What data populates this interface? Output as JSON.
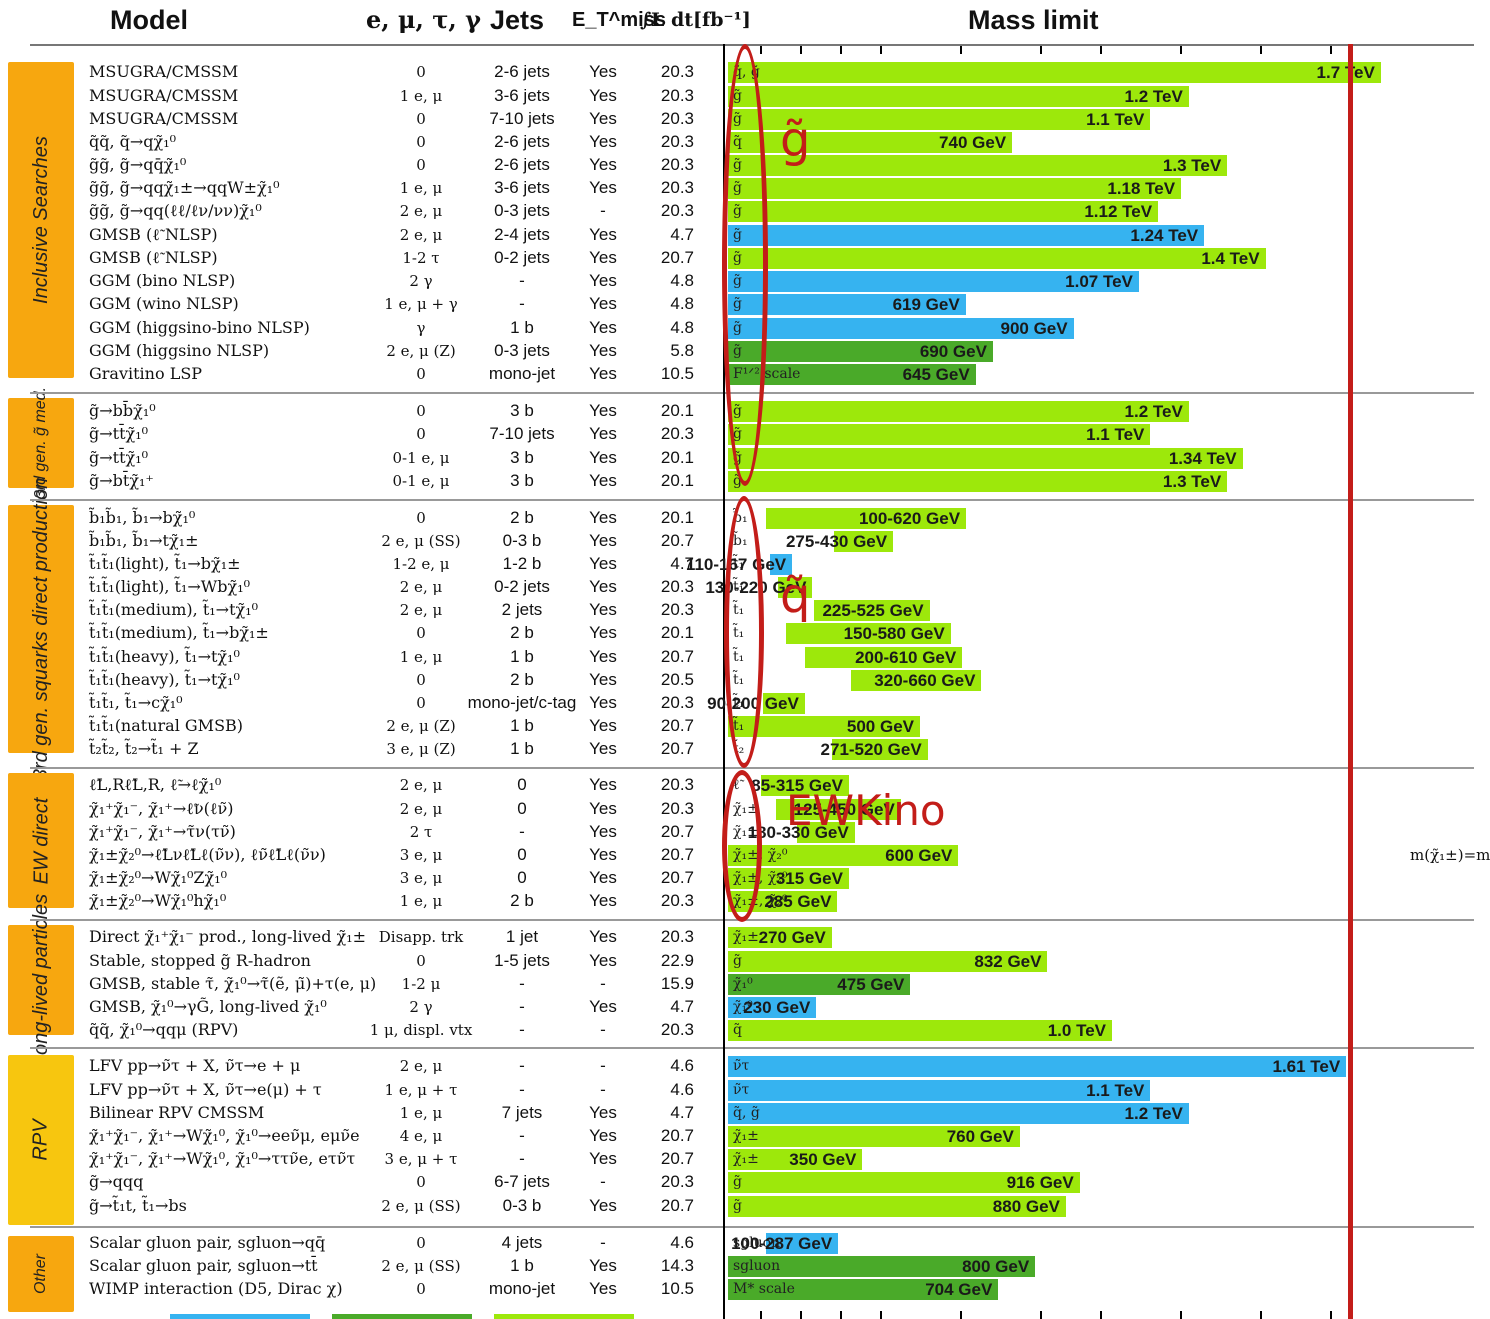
{
  "header": {
    "model": "Model",
    "leptons": "e, μ, τ, γ",
    "jets": "Jets",
    "met": "E_T^miss",
    "lumi": "∫L dt[fb⁻¹]",
    "mass_limit": "Mass limit"
  },
  "colors": {
    "lime": "#9de80b",
    "green": "#4aaa29",
    "blue": "#36b3f0",
    "red": "#c31d19",
    "tab": "#f7a70f",
    "tab_rpv": "#f7c60f"
  },
  "annotations": {
    "gluino": "g̃",
    "squark": "q̃",
    "ewkino": "EWKino"
  },
  "cut_text": "m(χ̃₁±)=m",
  "sections": [
    {
      "label": "Inclusive Searches"
    },
    {
      "label": "3rd gen. g̃ med."
    },
    {
      "label": "3rd gen. squarks direct production"
    },
    {
      "label": "EW direct"
    },
    {
      "label": "Long-lived particles"
    },
    {
      "label": "RPV"
    },
    {
      "label": "Other"
    }
  ],
  "chart_data": {
    "type": "bar",
    "orientation": "horizontal",
    "title": "Mass limit",
    "xlabel": "",
    "xunit": "TeV",
    "reference_line_tev": 1.7,
    "rows": [
      {
        "model": "MSUGRA/CMSSM",
        "lep": "0",
        "jets": "2-6 jets",
        "met": "Yes",
        "lumi": "20.3",
        "sp": "q̃, g̃",
        "lo": 0,
        "hi": 1.7,
        "label": "1.7 TeV",
        "color": "lime"
      },
      {
        "model": "MSUGRA/CMSSM",
        "lep": "1 e, μ",
        "jets": "3-6 jets",
        "met": "Yes",
        "lumi": "20.3",
        "sp": "g̃",
        "lo": 0,
        "hi": 1.2,
        "label": "1.2 TeV",
        "color": "lime"
      },
      {
        "model": "MSUGRA/CMSSM",
        "lep": "0",
        "jets": "7-10 jets",
        "met": "Yes",
        "lumi": "20.3",
        "sp": "g̃",
        "lo": 0,
        "hi": 1.1,
        "label": "1.1 TeV",
        "color": "lime"
      },
      {
        "model": "q̃q̃, q̃→qχ̃₁⁰",
        "lep": "0",
        "jets": "2-6 jets",
        "met": "Yes",
        "lumi": "20.3",
        "sp": "q̃",
        "lo": 0,
        "hi": 0.74,
        "label": "740 GeV",
        "color": "lime"
      },
      {
        "model": "g̃g̃, g̃→qq̄χ̃₁⁰",
        "lep": "0",
        "jets": "2-6 jets",
        "met": "Yes",
        "lumi": "20.3",
        "sp": "g̃",
        "lo": 0,
        "hi": 1.3,
        "label": "1.3 TeV",
        "color": "lime"
      },
      {
        "model": "g̃g̃, g̃→qqχ̃₁±→qqW±χ̃₁⁰",
        "lep": "1 e, μ",
        "jets": "3-6 jets",
        "met": "Yes",
        "lumi": "20.3",
        "sp": "g̃",
        "lo": 0,
        "hi": 1.18,
        "label": "1.18 TeV",
        "color": "lime"
      },
      {
        "model": "g̃g̃, g̃→qq(ℓℓ/ℓν/νν)χ̃₁⁰",
        "lep": "2 e, μ",
        "jets": "0-3 jets",
        "met": "-",
        "lumi": "20.3",
        "sp": "g̃",
        "lo": 0,
        "hi": 1.12,
        "label": "1.12 TeV",
        "color": "lime"
      },
      {
        "model": "GMSB (ℓ̃ NLSP)",
        "lep": "2 e, μ",
        "jets": "2-4 jets",
        "met": "Yes",
        "lumi": "4.7",
        "sp": "g̃",
        "lo": 0,
        "hi": 1.24,
        "label": "1.24 TeV",
        "color": "blue"
      },
      {
        "model": "GMSB (ℓ̃ NLSP)",
        "lep": "1-2 τ",
        "jets": "0-2 jets",
        "met": "Yes",
        "lumi": "20.7",
        "sp": "g̃",
        "lo": 0,
        "hi": 1.4,
        "label": "1.4 TeV",
        "color": "lime"
      },
      {
        "model": "GGM (bino NLSP)",
        "lep": "2 γ",
        "jets": "-",
        "met": "Yes",
        "lumi": "4.8",
        "sp": "g̃",
        "lo": 0,
        "hi": 1.07,
        "label": "1.07 TeV",
        "color": "blue"
      },
      {
        "model": "GGM (wino NLSP)",
        "lep": "1 e, μ + γ",
        "jets": "-",
        "met": "Yes",
        "lumi": "4.8",
        "sp": "g̃",
        "lo": 0,
        "hi": 0.619,
        "label": "619 GeV",
        "color": "blue"
      },
      {
        "model": "GGM (higgsino-bino NLSP)",
        "lep": "γ",
        "jets": "1 b",
        "met": "Yes",
        "lumi": "4.8",
        "sp": "g̃",
        "lo": 0,
        "hi": 0.9,
        "label": "900 GeV",
        "color": "blue"
      },
      {
        "model": "GGM (higgsino NLSP)",
        "lep": "2 e, μ (Z)",
        "jets": "0-3 jets",
        "met": "Yes",
        "lumi": "5.8",
        "sp": "g̃",
        "lo": 0,
        "hi": 0.69,
        "label": "690 GeV",
        "color": "green"
      },
      {
        "model": "Gravitino LSP",
        "lep": "0",
        "jets": "mono-jet",
        "met": "Yes",
        "lumi": "10.5",
        "sp": "F¹ᐟ² scale",
        "lo": 0,
        "hi": 0.645,
        "label": "645 GeV",
        "color": "green"
      },
      {
        "model": "g̃→bb̄χ̃₁⁰",
        "lep": "0",
        "jets": "3 b",
        "met": "Yes",
        "lumi": "20.1",
        "sp": "g̃",
        "lo": 0,
        "hi": 1.2,
        "label": "1.2 TeV",
        "color": "lime"
      },
      {
        "model": "g̃→tt̄χ̃₁⁰",
        "lep": "0",
        "jets": "7-10 jets",
        "met": "Yes",
        "lumi": "20.3",
        "sp": "g̃",
        "lo": 0,
        "hi": 1.1,
        "label": "1.1 TeV",
        "color": "lime"
      },
      {
        "model": "g̃→tt̄χ̃₁⁰",
        "lep": "0-1 e, μ",
        "jets": "3 b",
        "met": "Yes",
        "lumi": "20.1",
        "sp": "g̃",
        "lo": 0,
        "hi": 1.34,
        "label": "1.34 TeV",
        "color": "lime"
      },
      {
        "model": "g̃→bt̄χ̃₁⁺",
        "lep": "0-1 e, μ",
        "jets": "3 b",
        "met": "Yes",
        "lumi": "20.1",
        "sp": "g̃",
        "lo": 0,
        "hi": 1.3,
        "label": "1.3 TeV",
        "color": "lime"
      },
      {
        "model": "b̃₁b̃₁, b̃₁→bχ̃₁⁰",
        "lep": "0",
        "jets": "2 b",
        "met": "Yes",
        "lumi": "20.1",
        "sp": "b̃₁",
        "lo": 0.1,
        "hi": 0.62,
        "label": "100-620 GeV",
        "color": "lime"
      },
      {
        "model": "b̃₁b̃₁, b̃₁→tχ̃₁±",
        "lep": "2 e, μ (SS)",
        "jets": "0-3 b",
        "met": "Yes",
        "lumi": "20.7",
        "sp": "b̃₁",
        "lo": 0.275,
        "hi": 0.43,
        "label": "275-430 GeV",
        "color": "lime"
      },
      {
        "model": "t̃₁t̃₁(light), t̃₁→bχ̃₁±",
        "lep": "1-2 e, μ",
        "jets": "1-2 b",
        "met": "Yes",
        "lumi": "4.7",
        "sp": "t̃₁",
        "lo": 0.11,
        "hi": 0.167,
        "label": "110-167 GeV",
        "color": "blue"
      },
      {
        "model": "t̃₁t̃₁(light), t̃₁→Wbχ̃₁⁰",
        "lep": "2 e, μ",
        "jets": "0-2 jets",
        "met": "Yes",
        "lumi": "20.3",
        "sp": "t̃₁",
        "lo": 0.13,
        "hi": 0.22,
        "label": "130-220 GeV",
        "color": "lime"
      },
      {
        "model": "t̃₁t̃₁(medium), t̃₁→tχ̃₁⁰",
        "lep": "2 e, μ",
        "jets": "2 jets",
        "met": "Yes",
        "lumi": "20.3",
        "sp": "t̃₁",
        "lo": 0.225,
        "hi": 0.525,
        "label": "225-525 GeV",
        "color": "lime"
      },
      {
        "model": "t̃₁t̃₁(medium), t̃₁→bχ̃₁±",
        "lep": "0",
        "jets": "2 b",
        "met": "Yes",
        "lumi": "20.1",
        "sp": "t̃₁",
        "lo": 0.15,
        "hi": 0.58,
        "label": "150-580 GeV",
        "color": "lime"
      },
      {
        "model": "t̃₁t̃₁(heavy), t̃₁→tχ̃₁⁰",
        "lep": "1 e, μ",
        "jets": "1 b",
        "met": "Yes",
        "lumi": "20.7",
        "sp": "t̃₁",
        "lo": 0.2,
        "hi": 0.61,
        "label": "200-610 GeV",
        "color": "lime"
      },
      {
        "model": "t̃₁t̃₁(heavy), t̃₁→tχ̃₁⁰",
        "lep": "0",
        "jets": "2 b",
        "met": "Yes",
        "lumi": "20.5",
        "sp": "t̃₁",
        "lo": 0.32,
        "hi": 0.66,
        "label": "320-660 GeV",
        "color": "lime"
      },
      {
        "model": "t̃₁t̃₁, t̃₁→cχ̃₁⁰",
        "lep": "0",
        "jets": "mono-jet/c-tag",
        "met": "Yes",
        "lumi": "20.3",
        "sp": "t̃₁",
        "lo": 0.09,
        "hi": 0.2,
        "label": "90-200 GeV",
        "color": "lime"
      },
      {
        "model": "t̃₁t̃₁(natural GMSB)",
        "lep": "2 e, μ (Z)",
        "jets": "1 b",
        "met": "Yes",
        "lumi": "20.7",
        "sp": "t̃₁",
        "lo": 0,
        "hi": 0.5,
        "label": "500 GeV",
        "color": "lime"
      },
      {
        "model": "t̃₂t̃₂, t̃₂→t̃₁ + Z",
        "lep": "3 e, μ (Z)",
        "jets": "1 b",
        "met": "Yes",
        "lumi": "20.7",
        "sp": "t̃₂",
        "lo": 0.271,
        "hi": 0.52,
        "label": "271-520 GeV",
        "color": "lime"
      },
      {
        "model": "ℓ̃L,Rℓ̃L,R, ℓ̃→ℓχ̃₁⁰",
        "lep": "2 e, μ",
        "jets": "0",
        "met": "Yes",
        "lumi": "20.3",
        "sp": "ℓ̃",
        "lo": 0.085,
        "hi": 0.315,
        "label": "85-315 GeV",
        "color": "lime"
      },
      {
        "model": "χ̃₁⁺χ̃₁⁻, χ̃₁⁺→ℓ̃ν(ℓν̃)",
        "lep": "2 e, μ",
        "jets": "0",
        "met": "Yes",
        "lumi": "20.3",
        "sp": "χ̃₁±",
        "lo": 0.125,
        "hi": 0.45,
        "label": "125-450 GeV",
        "color": "lime"
      },
      {
        "model": "χ̃₁⁺χ̃₁⁻, χ̃₁⁺→τ̃ν(τν̃)",
        "lep": "2 τ",
        "jets": "-",
        "met": "Yes",
        "lumi": "20.7",
        "sp": "χ̃₁±",
        "lo": 0.18,
        "hi": 0.33,
        "label": "180-330 GeV",
        "color": "lime"
      },
      {
        "model": "χ̃₁±χ̃₂⁰→ℓ̃Lνℓ̃Lℓ(ν̃ν), ℓν̃ℓ̃Lℓ(ν̃ν)",
        "lep": "3 e, μ",
        "jets": "0",
        "met": "Yes",
        "lumi": "20.7",
        "sp": "χ̃₁±, χ̃₂⁰",
        "lo": 0,
        "hi": 0.6,
        "label": "600 GeV",
        "color": "lime"
      },
      {
        "model": "χ̃₁±χ̃₂⁰→Wχ̃₁⁰Zχ̃₁⁰",
        "lep": "3 e, μ",
        "jets": "0",
        "met": "Yes",
        "lumi": "20.7",
        "sp": "χ̃₁±, χ̃₂⁰",
        "lo": 0,
        "hi": 0.315,
        "label": "315 GeV",
        "color": "lime"
      },
      {
        "model": "χ̃₁±χ̃₂⁰→Wχ̃₁⁰hχ̃₁⁰",
        "lep": "1 e, μ",
        "jets": "2 b",
        "met": "Yes",
        "lumi": "20.3",
        "sp": "χ̃₁±, χ̃₂⁰",
        "lo": 0,
        "hi": 0.285,
        "label": "285 GeV",
        "color": "lime"
      },
      {
        "model": "Direct χ̃₁⁺χ̃₁⁻ prod., long-lived χ̃₁±",
        "lep": "Disapp. trk",
        "jets": "1 jet",
        "met": "Yes",
        "lumi": "20.3",
        "sp": "χ̃₁±",
        "lo": 0,
        "hi": 0.27,
        "label": "270 GeV",
        "color": "lime"
      },
      {
        "model": "Stable, stopped g̃ R-hadron",
        "lep": "0",
        "jets": "1-5 jets",
        "met": "Yes",
        "lumi": "22.9",
        "sp": "g̃",
        "lo": 0,
        "hi": 0.832,
        "label": "832 GeV",
        "color": "lime"
      },
      {
        "model": "GMSB, stable τ̃, χ̃₁⁰→τ̃(ẽ, μ̃)+τ(e, μ)",
        "lep": "1-2 μ",
        "jets": "-",
        "met": "-",
        "lumi": "15.9",
        "sp": "χ̃₁⁰",
        "lo": 0,
        "hi": 0.475,
        "label": "475 GeV",
        "color": "green"
      },
      {
        "model": "GMSB, χ̃₁⁰→γG̃, long-lived χ̃₁⁰",
        "lep": "2 γ",
        "jets": "-",
        "met": "Yes",
        "lumi": "4.7",
        "sp": "χ̃₁⁰",
        "lo": 0,
        "hi": 0.23,
        "label": "230 GeV",
        "color": "blue"
      },
      {
        "model": "q̃q̃, χ̃₁⁰→qqμ (RPV)",
        "lep": "1 μ, displ. vtx",
        "jets": "-",
        "met": "-",
        "lumi": "20.3",
        "sp": "q̃",
        "lo": 0,
        "hi": 1.0,
        "label": "1.0 TeV",
        "color": "lime"
      },
      {
        "model": "LFV pp→ν̃τ + X, ν̃τ→e + μ",
        "lep": "2 e, μ",
        "jets": "-",
        "met": "-",
        "lumi": "4.6",
        "sp": "ν̃τ",
        "lo": 0,
        "hi": 1.61,
        "label": "1.61 TeV",
        "color": "blue"
      },
      {
        "model": "LFV pp→ν̃τ + X, ν̃τ→e(μ) + τ",
        "lep": "1 e, μ + τ",
        "jets": "-",
        "met": "-",
        "lumi": "4.6",
        "sp": "ν̃τ",
        "lo": 0,
        "hi": 1.1,
        "label": "1.1 TeV",
        "color": "blue"
      },
      {
        "model": "Bilinear RPV CMSSM",
        "lep": "1 e, μ",
        "jets": "7 jets",
        "met": "Yes",
        "lumi": "4.7",
        "sp": "q̃, g̃",
        "lo": 0,
        "hi": 1.2,
        "label": "1.2 TeV",
        "color": "blue"
      },
      {
        "model": "χ̃₁⁺χ̃₁⁻, χ̃₁⁺→Wχ̃₁⁰, χ̃₁⁰→eeν̃μ, eμν̃e",
        "lep": "4 e, μ",
        "jets": "-",
        "met": "Yes",
        "lumi": "20.7",
        "sp": "χ̃₁±",
        "lo": 0,
        "hi": 0.76,
        "label": "760 GeV",
        "color": "lime"
      },
      {
        "model": "χ̃₁⁺χ̃₁⁻, χ̃₁⁺→Wχ̃₁⁰, χ̃₁⁰→ττν̃e, eτν̃τ",
        "lep": "3 e, μ + τ",
        "jets": "-",
        "met": "Yes",
        "lumi": "20.7",
        "sp": "χ̃₁±",
        "lo": 0,
        "hi": 0.35,
        "label": "350 GeV",
        "color": "lime"
      },
      {
        "model": "g̃→qqq",
        "lep": "0",
        "jets": "6-7 jets",
        "met": "-",
        "lumi": "20.3",
        "sp": "g̃",
        "lo": 0,
        "hi": 0.916,
        "label": "916 GeV",
        "color": "lime"
      },
      {
        "model": "g̃→t̃₁t, t̃₁→bs",
        "lep": "2 e, μ (SS)",
        "jets": "0-3 b",
        "met": "Yes",
        "lumi": "20.7",
        "sp": "g̃",
        "lo": 0,
        "hi": 0.88,
        "label": "880 GeV",
        "color": "lime"
      },
      {
        "model": "Scalar gluon pair, sgluon→qq̄",
        "lep": "0",
        "jets": "4 jets",
        "met": "-",
        "lumi": "4.6",
        "sp": "sgluon",
        "lo": 0.1,
        "hi": 0.287,
        "label": "100-287 GeV",
        "color": "blue"
      },
      {
        "model": "Scalar gluon pair, sgluon→tt̄",
        "lep": "2 e, μ (SS)",
        "jets": "1 b",
        "met": "Yes",
        "lumi": "14.3",
        "sp": "sgluon",
        "lo": 0,
        "hi": 0.8,
        "label": "800 GeV",
        "color": "green"
      },
      {
        "model": "WIMP interaction (D5, Dirac χ)",
        "lep": "0",
        "jets": "mono-jet",
        "met": "Yes",
        "lumi": "10.5",
        "sp": "M* scale",
        "lo": 0,
        "hi": 0.704,
        "label": "704 GeV",
        "color": "green"
      }
    ]
  }
}
